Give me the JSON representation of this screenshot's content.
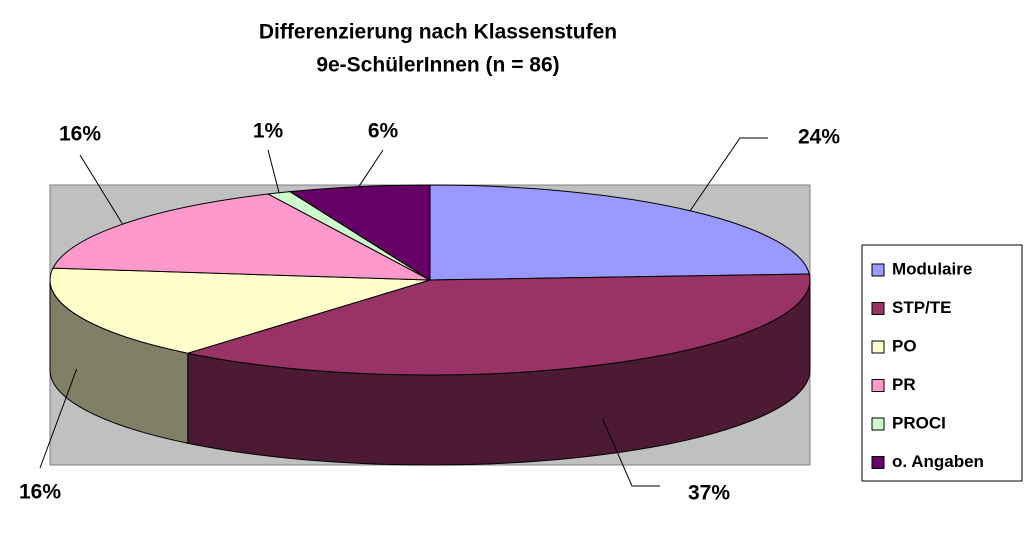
{
  "chart_data": {
    "type": "pie3d",
    "title": "Differenzierung nach Klassenstufen",
    "subtitle": "9e-SchülerInnen (n = 86)",
    "categories": [
      "Modulaire",
      "STP/TE",
      "PO",
      "PR",
      "PROCI",
      "o. Angaben"
    ],
    "values": [
      24,
      37,
      16,
      16,
      1,
      6
    ],
    "value_labels": [
      "24%",
      "37%",
      "16%",
      "16%",
      "1%",
      "6%"
    ],
    "colors": [
      "#9999ff",
      "#993366",
      "#ffffcc",
      "#ff99cc",
      "#ccffcc",
      "#660066"
    ],
    "legend": "right"
  }
}
